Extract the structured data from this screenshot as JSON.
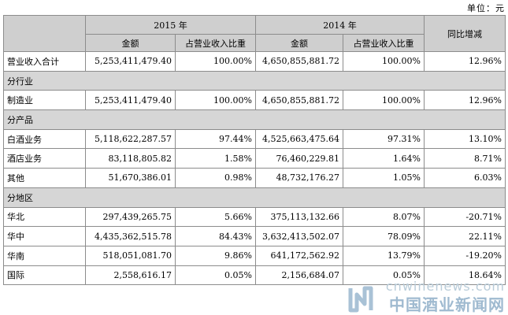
{
  "unit_label": "单位：元",
  "header": {
    "year_2015": "2015 年",
    "year_2014": "2014 年",
    "amount": "金额",
    "share": "占营业收入比重",
    "yoy": "同比增减"
  },
  "rows": [
    {
      "type": "data",
      "label": "营业收入合计",
      "amt2015": "5,253,411,479.40",
      "pct2015": "100.00%",
      "amt2014": "4,650,855,881.72",
      "pct2014": "100.00%",
      "yoy": "12.96%"
    },
    {
      "type": "section",
      "label": "分行业"
    },
    {
      "type": "data",
      "label": "制造业",
      "amt2015": "5,253,411,479.40",
      "pct2015": "100.00%",
      "amt2014": "4,650,855,881.72",
      "pct2014": "100.00%",
      "yoy": "12.96%"
    },
    {
      "type": "section",
      "label": "分产品"
    },
    {
      "type": "data",
      "label": "白酒业务",
      "amt2015": "5,118,622,287.57",
      "pct2015": "97.44%",
      "amt2014": "4,525,663,475.64",
      "pct2014": "97.31%",
      "yoy": "13.10%"
    },
    {
      "type": "data",
      "label": "酒店业务",
      "amt2015": "83,118,805.82",
      "pct2015": "1.58%",
      "amt2014": "76,460,229.81",
      "pct2014": "1.64%",
      "yoy": "8.71%"
    },
    {
      "type": "data",
      "label": "其他",
      "amt2015": "51,670,386.01",
      "pct2015": "0.98%",
      "amt2014": "48,732,176.27",
      "pct2014": "1.05%",
      "yoy": "6.03%"
    },
    {
      "type": "section",
      "label": "分地区"
    },
    {
      "type": "data",
      "label": "华北",
      "amt2015": "297,439,265.75",
      "pct2015": "5.66%",
      "amt2014": "375,113,132.66",
      "pct2014": "8.07%",
      "yoy": "-20.71%"
    },
    {
      "type": "data",
      "label": "华中",
      "amt2015": "4,435,362,515.78",
      "pct2015": "84.43%",
      "amt2014": "3,632,413,502.07",
      "pct2014": "78.09%",
      "yoy": "22.11%"
    },
    {
      "type": "data",
      "label": "华南",
      "amt2015": "518,051,081.70",
      "pct2015": "9.86%",
      "amt2014": "641,172,562.92",
      "pct2014": "13.79%",
      "yoy": "-19.20%"
    },
    {
      "type": "data",
      "label": "国际",
      "amt2015": "2,558,616.17",
      "pct2015": "0.05%",
      "amt2014": "2,156,684.07",
      "pct2014": "0.05%",
      "yoy": "18.64%"
    }
  ],
  "watermark": {
    "url": "cnwinenews.com",
    "name": "中国酒业新闻网",
    "color": "#9fbad0"
  }
}
